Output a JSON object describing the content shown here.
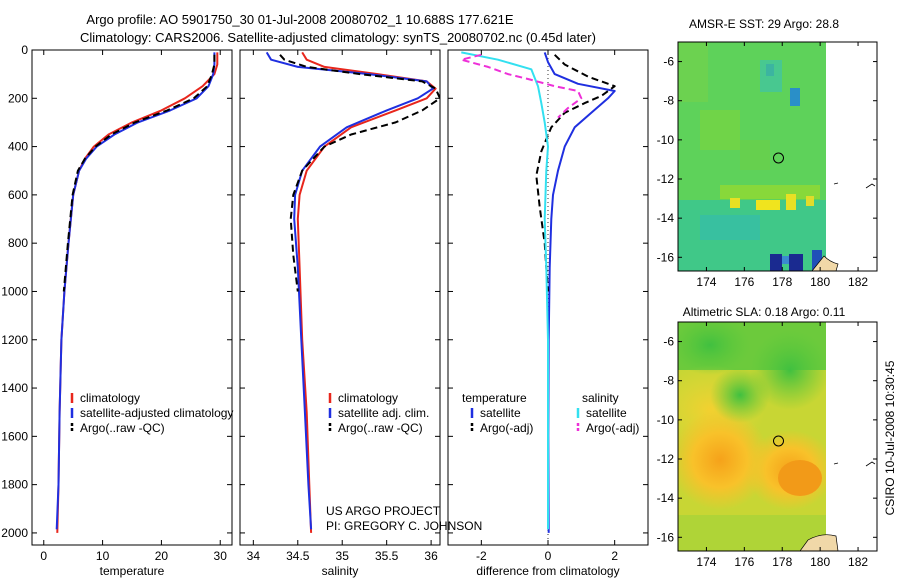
{
  "header": {
    "title_line1": "Argo profile: AO 5901750_30 01-Jul-2008 20080702_1 10.688S 177.621E",
    "title_line2": "Climatology: CARS2006. Satellite-adjusted climatology: synTS_20080702.nc (0.45d later)"
  },
  "side_stamp": "CSIRO 10-Jul-2008 10:30:45",
  "project_note": [
    "US ARGO PROJECT",
    "PI: GREGORY C. JOHNSON"
  ],
  "colors": {
    "climatology": "#e8261c",
    "satellite": "#1f2fe0",
    "argo": "#000000",
    "salinity_satellite": "#33e0f0",
    "salinity_argo": "#ee30d8"
  },
  "chart_data": [
    {
      "type": "line",
      "id": "temperature",
      "xlabel": "temperature",
      "ylabel": "",
      "xlim": [
        -2,
        32
      ],
      "ylim": [
        2050,
        0
      ],
      "xticks": [
        0,
        10,
        20,
        30
      ],
      "yticks": [
        0,
        200,
        400,
        600,
        800,
        1000,
        1200,
        1400,
        1600,
        1800,
        2000
      ],
      "legend": {
        "position": "lower-center",
        "entries": [
          {
            "label": "climatology",
            "color": "#e8261c"
          },
          {
            "label": "satellite-adjusted climatology",
            "color": "#1f2fe0"
          },
          {
            "label": "Argo(..raw -QC)",
            "color": "#000000",
            "dash": true
          }
        ]
      },
      "series": [
        {
          "name": "climatology",
          "color": "#e8261c",
          "x": [
            29.5,
            29.5,
            29,
            27,
            24,
            20,
            15,
            11,
            8.5,
            7,
            6,
            5,
            4.2,
            3.5,
            3,
            2.7,
            2.5,
            2.3
          ],
          "y": [
            10,
            60,
            100,
            150,
            200,
            250,
            300,
            350,
            400,
            450,
            500,
            600,
            800,
            1000,
            1200,
            1500,
            1800,
            2000
          ]
        },
        {
          "name": "satellite-adjusted climatology",
          "color": "#1f2fe0",
          "x": [
            29,
            29,
            28.8,
            28,
            26,
            21.5,
            16,
            12,
            9,
            7.2,
            6,
            5,
            4.2,
            3.5,
            3,
            2.7,
            2.5,
            2.2
          ],
          "y": [
            10,
            60,
            100,
            150,
            200,
            250,
            300,
            350,
            400,
            450,
            500,
            600,
            800,
            1000,
            1200,
            1500,
            1800,
            1985
          ]
        },
        {
          "name": "Argo(..raw -QC)",
          "color": "#000000",
          "dash": true,
          "x": [
            29,
            29,
            28.6,
            27.8,
            25.5,
            21,
            15.5,
            11.5,
            8.8,
            7,
            5.8,
            4.9,
            4.1,
            3.4
          ],
          "y": [
            20,
            60,
            100,
            150,
            200,
            250,
            300,
            350,
            400,
            450,
            500,
            600,
            800,
            1000
          ]
        }
      ]
    },
    {
      "type": "line",
      "id": "salinity",
      "xlabel": "salinity",
      "ylabel": "",
      "xlim": [
        33.85,
        36.1
      ],
      "ylim": [
        2050,
        0
      ],
      "xticks": [
        34,
        34.5,
        35,
        35.5,
        36
      ],
      "yticks": [
        0,
        200,
        400,
        600,
        800,
        1000,
        1200,
        1400,
        1600,
        1800,
        2000
      ],
      "legend": {
        "position": "lower-center",
        "entries": [
          {
            "label": "climatology",
            "color": "#e8261c"
          },
          {
            "label": "satellite adj. clim.",
            "color": "#1f2fe0"
          },
          {
            "label": "Argo(..raw -QC)",
            "color": "#000000",
            "dash": true
          }
        ]
      },
      "series": [
        {
          "name": "climatology",
          "color": "#e8261c",
          "x": [
            34.55,
            34.6,
            34.8,
            35.4,
            35.95,
            36.05,
            35.95,
            35.6,
            35.1,
            34.8,
            34.6,
            34.52,
            34.5,
            34.52,
            34.55,
            34.6,
            34.63,
            34.65
          ],
          "y": [
            10,
            40,
            70,
            100,
            130,
            160,
            200,
            250,
            320,
            400,
            500,
            600,
            700,
            900,
            1200,
            1500,
            1800,
            2000
          ]
        },
        {
          "name": "satellite adj. clim.",
          "color": "#1f2fe0",
          "x": [
            34.15,
            34.2,
            34.5,
            35.3,
            35.95,
            36.02,
            35.85,
            35.5,
            35.05,
            34.75,
            34.55,
            34.47,
            34.46,
            34.5,
            34.54,
            34.58,
            34.62,
            34.65
          ],
          "y": [
            10,
            40,
            70,
            100,
            130,
            160,
            200,
            250,
            320,
            400,
            500,
            600,
            700,
            900,
            1200,
            1500,
            1800,
            1985
          ]
        },
        {
          "name": "Argo(..raw -QC)",
          "color": "#000000",
          "dash": true,
          "x": [
            34.3,
            34.35,
            34.6,
            35.2,
            35.9,
            36.05,
            36.1,
            35.9,
            35.6,
            35.1,
            34.8,
            34.55,
            34.45,
            34.42,
            34.45,
            34.5
          ],
          "y": [
            20,
            40,
            70,
            100,
            130,
            160,
            200,
            250,
            300,
            350,
            400,
            500,
            600,
            700,
            850,
            1000
          ]
        }
      ]
    },
    {
      "type": "line",
      "id": "difference",
      "xlabel": "difference from climatology",
      "ylabel": "",
      "xlim": [
        -3,
        3
      ],
      "ylim": [
        2050,
        0
      ],
      "xticks": [
        -2,
        0,
        2
      ],
      "yticks": [
        0,
        200,
        400,
        600,
        800,
        1000,
        1200,
        1400,
        1600,
        1800,
        2000
      ],
      "legend": {
        "position": "lower-center",
        "temperature_title": "temperature",
        "salinity_title": "salinity",
        "entries": [
          {
            "group": "temperature",
            "label": "satellite",
            "color": "#1f2fe0"
          },
          {
            "group": "temperature",
            "label": "Argo(-adj)",
            "color": "#000000",
            "dash": true
          },
          {
            "group": "salinity",
            "label": "satellite",
            "color": "#33e0f0"
          },
          {
            "group": "salinity",
            "label": "Argo(-adj)",
            "color": "#ee30d8",
            "dash": true
          }
        ]
      },
      "series": [
        {
          "name": "temperature satellite",
          "color": "#1f2fe0",
          "x": [
            -0.1,
            0,
            0.2,
            0.9,
            2.0,
            1.8,
            1.3,
            0.8,
            0.5,
            0.3,
            0.15,
            0.1,
            0.05,
            0.02,
            0.01,
            0.02
          ],
          "y": [
            10,
            50,
            100,
            140,
            170,
            200,
            260,
            320,
            400,
            500,
            600,
            700,
            900,
            1200,
            1600,
            2000
          ]
        },
        {
          "name": "temperature Argo(-adj)",
          "color": "#000000",
          "dash": true,
          "x": [
            0.2,
            0.5,
            1.2,
            2.0,
            1.6,
            1.1,
            0.5,
            0.1,
            -0.2,
            -0.35,
            -0.25,
            -0.1,
            -0.05,
            0.0
          ],
          "y": [
            20,
            60,
            110,
            150,
            190,
            220,
            260,
            320,
            420,
            520,
            650,
            800,
            900,
            1000
          ]
        },
        {
          "name": "salinity satellite",
          "color": "#33e0f0",
          "x": [
            -2.6,
            -1.5,
            -0.5,
            -0.3,
            -0.2,
            -0.1,
            0.0,
            -0.05,
            -0.1,
            -0.05,
            0.0,
            0.0,
            0.0
          ],
          "y": [
            10,
            40,
            80,
            150,
            220,
            300,
            400,
            500,
            700,
            900,
            1200,
            1600,
            1985
          ]
        },
        {
          "name": "salinity Argo(-adj)",
          "color": "#ee30d8",
          "dash": true,
          "x": [
            -2.0,
            -2.6,
            -1.8,
            -1.2,
            -0.6,
            0.2,
            0.9,
            1.0,
            0.6,
            0.3
          ],
          "y": [
            20,
            40,
            70,
            100,
            120,
            150,
            170,
            200,
            240,
            280
          ]
        }
      ]
    },
    {
      "type": "heatmap",
      "id": "sst_map",
      "title": "AMSR-E SST: 29 Argo: 28.8",
      "xlim": [
        172.5,
        183
      ],
      "ylim": [
        -16.7,
        -5
      ],
      "xticks": [
        174,
        176,
        178,
        180,
        182
      ],
      "yticks": [
        -6,
        -8,
        -10,
        -12,
        -14,
        -16
      ],
      "data_extent_x": [
        172.5,
        180
      ],
      "float_position": {
        "lon": 177.621,
        "lat": -10.688
      }
    },
    {
      "type": "heatmap",
      "id": "sla_map",
      "title": "Altimetric SLA: 0.18 Argo: 0.11",
      "xlim": [
        172.5,
        183
      ],
      "ylim": [
        -16.7,
        -5
      ],
      "xticks": [
        174,
        176,
        178,
        180,
        182
      ],
      "yticks": [
        -6,
        -8,
        -10,
        -12,
        -14,
        -16
      ],
      "data_extent_x": [
        172.5,
        180
      ],
      "float_position": {
        "lon": 177.621,
        "lat": -10.688
      }
    }
  ]
}
